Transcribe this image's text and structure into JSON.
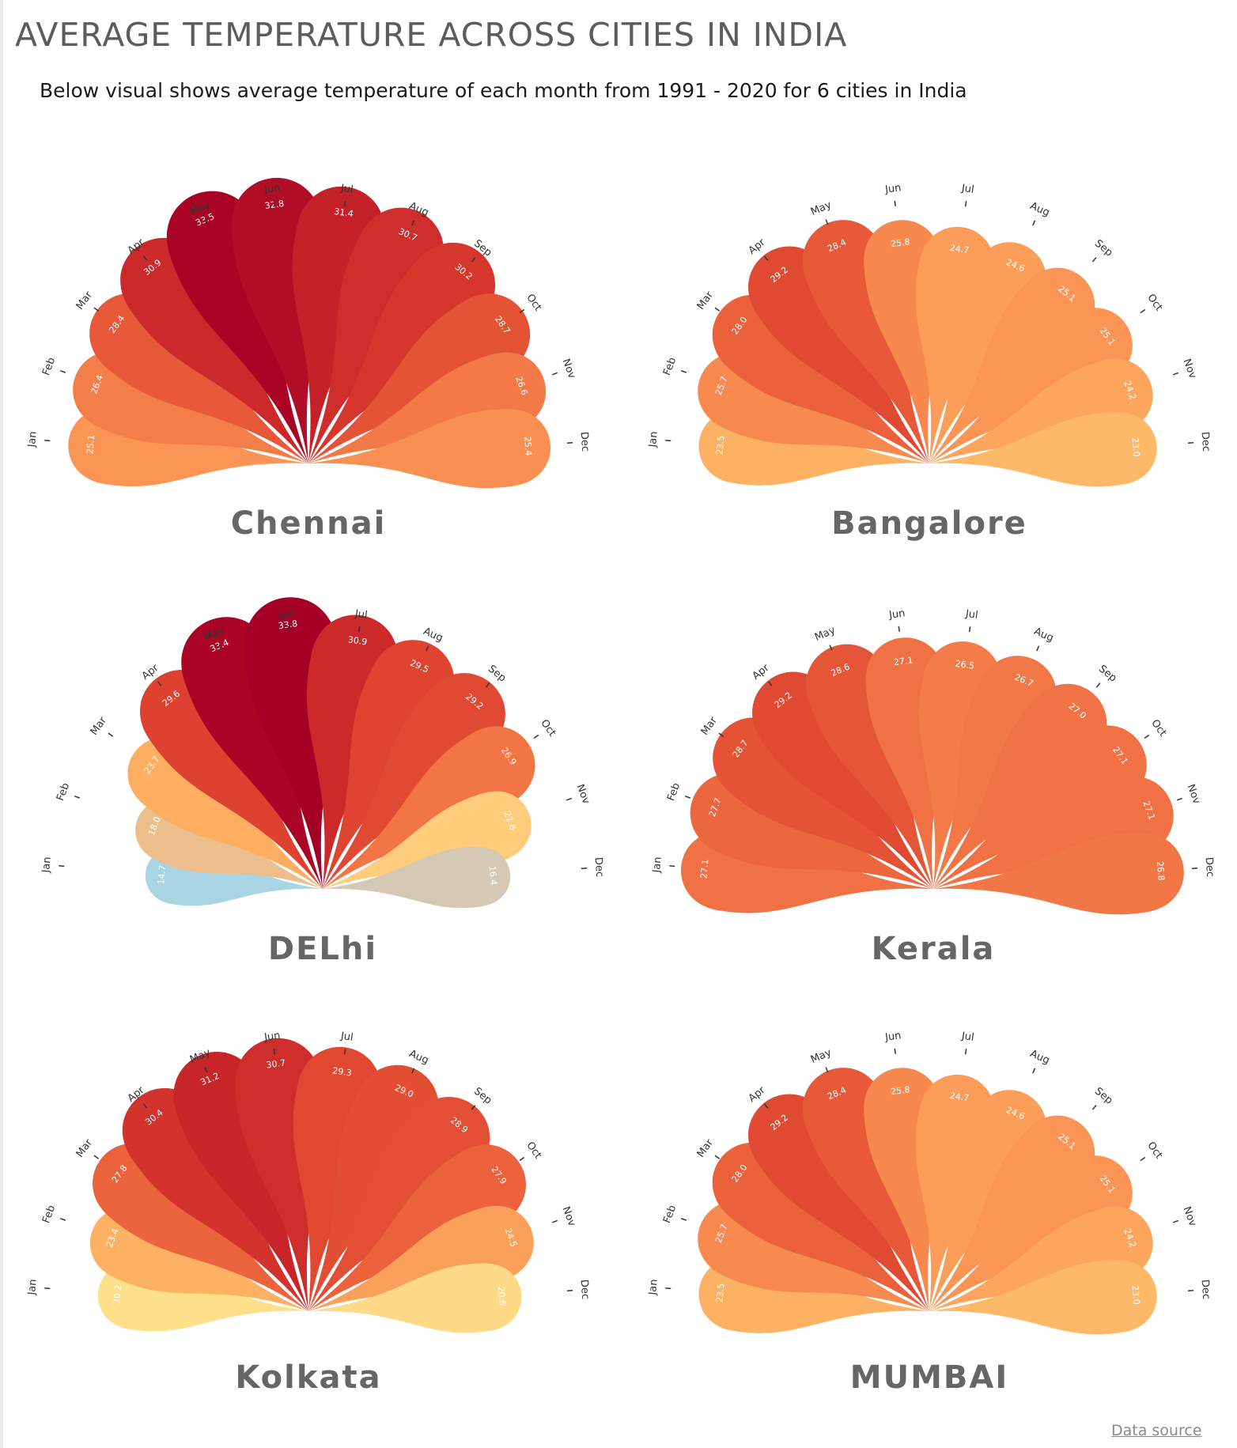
{
  "page": {
    "title": "AVERAGE TEMPERATURE ACROSS CITIES IN INDIA",
    "subtitle": "Below visual shows average temperature of each month from 1991 - 2020 for 6 cities in India",
    "data_source_link": "Data source"
  },
  "colors": {
    "title": "#5c5c5c",
    "city_label": "#666666",
    "month_label": "#333333",
    "value_label": "#ffffff",
    "scale": [
      {
        "t": 14.7,
        "c": "#a9d4e3"
      },
      {
        "t": 16.4,
        "c": "#d5c8b4"
      },
      {
        "t": 18.0,
        "c": "#ecbe8c"
      },
      {
        "t": 20.2,
        "c": "#fee08b"
      },
      {
        "t": 23.5,
        "c": "#fdb162"
      },
      {
        "t": 25.5,
        "c": "#f98e52"
      },
      {
        "t": 27.5,
        "c": "#ee6a40"
      },
      {
        "t": 29.5,
        "c": "#de4430"
      },
      {
        "t": 31.5,
        "c": "#c41f28"
      },
      {
        "t": 33.8,
        "c": "#a50026"
      }
    ]
  },
  "chart_data": [
    {
      "type": "radial-petal",
      "title": "Chennai",
      "categories": [
        "Jan",
        "Feb",
        "Mar",
        "Apr",
        "May",
        "Jun",
        "Jul",
        "Aug",
        "Sep",
        "Oct",
        "Nov",
        "Dec"
      ],
      "values": [
        25.1,
        26.4,
        28.4,
        30.9,
        33.5,
        32.8,
        31.4,
        30.7,
        30.2,
        28.7,
        26.6,
        25.4
      ],
      "labels": [
        "25.1",
        "26.4",
        "28.4",
        "30.9",
        "33.5",
        "32.8",
        "31.4",
        "30.7",
        "30.2",
        "28.7",
        "26.6",
        "25.4"
      ],
      "ylim": [
        0,
        33.8
      ]
    },
    {
      "type": "radial-petal",
      "title": "Bangalore",
      "categories": [
        "Jan",
        "Feb",
        "Mar",
        "Apr",
        "May",
        "Jun",
        "Jul",
        "Aug",
        "Sep",
        "Oct",
        "Nov",
        "Dec"
      ],
      "values": [
        23.5,
        25.7,
        28.0,
        29.2,
        28.4,
        25.8,
        24.7,
        24.6,
        25.1,
        25.1,
        24.2,
        23.0
      ],
      "labels": [
        "23.5",
        "25.7",
        "28.0",
        "29.2",
        "28.4",
        "25.8",
        "24.7",
        "24.6",
        "25.1",
        "25.1",
        "24.2",
        "23.0"
      ],
      "ylim": [
        0,
        33.8
      ]
    },
    {
      "type": "radial-petal",
      "title": "DELhi",
      "categories": [
        "Jan",
        "Feb",
        "Mar",
        "Apr",
        "May",
        "Jun",
        "Jul",
        "Aug",
        "Sep",
        "Oct",
        "Nov",
        "Dec"
      ],
      "values": [
        14.7,
        18.0,
        23.7,
        29.6,
        33.4,
        33.8,
        30.9,
        29.5,
        29.2,
        26.9,
        21.6,
        16.4
      ],
      "labels": [
        "14.7",
        "18.0",
        "23.7",
        "29.6",
        "33.4",
        "33.8",
        "30.9",
        "29.5",
        "29.2",
        "26.9",
        "21.6",
        "16.4"
      ],
      "ylim": [
        0,
        33.8
      ]
    },
    {
      "type": "radial-petal",
      "title": "Kerala",
      "categories": [
        "Jan",
        "Feb",
        "Mar",
        "Apr",
        "May",
        "Jun",
        "Jul",
        "Aug",
        "Sep",
        "Oct",
        "Nov",
        "Dec"
      ],
      "values": [
        27.1,
        27.7,
        28.7,
        29.2,
        28.6,
        27.1,
        26.5,
        26.7,
        27.0,
        27.1,
        27.1,
        26.8
      ],
      "labels": [
        "27.1",
        "27.7",
        "28.7",
        "29.2",
        "28.6",
        "27.1",
        "26.5",
        "26.7",
        "27.0",
        "27.1",
        "27.1",
        "26.8"
      ],
      "ylim": [
        0,
        33.8
      ]
    },
    {
      "type": "radial-petal",
      "title": "Kolkata",
      "categories": [
        "Jan",
        "Feb",
        "Mar",
        "Apr",
        "May",
        "Jun",
        "Jul",
        "Aug",
        "Sep",
        "Oct",
        "Nov",
        "Dec"
      ],
      "values": [
        20.2,
        23.4,
        27.8,
        30.4,
        31.2,
        30.7,
        29.3,
        29.0,
        28.9,
        27.9,
        24.5,
        20.6
      ],
      "labels": [
        "20.2",
        "23.4",
        "27.8",
        "30.4",
        "31.2",
        "30.7",
        "29.3",
        "29.0",
        "28.9",
        "27.9",
        "24.5",
        "20.6"
      ],
      "ylim": [
        0,
        33.8
      ]
    },
    {
      "type": "radial-petal",
      "title": "MUMBAI",
      "categories": [
        "Jan",
        "Feb",
        "Mar",
        "Apr",
        "May",
        "Jun",
        "Jul",
        "Aug",
        "Sep",
        "Oct",
        "Nov",
        "Dec"
      ],
      "values": [
        23.5,
        25.7,
        28.0,
        29.2,
        28.4,
        25.8,
        24.7,
        24.6,
        25.1,
        25.1,
        24.2,
        23.0
      ],
      "labels": [
        "23.5",
        "25.7",
        "28.0",
        "29.2",
        "28.4",
        "25.8",
        "24.7",
        "24.6",
        "25.1",
        "25.1",
        "24.2",
        "23.0"
      ],
      "ylim": [
        0,
        33.8
      ]
    }
  ]
}
